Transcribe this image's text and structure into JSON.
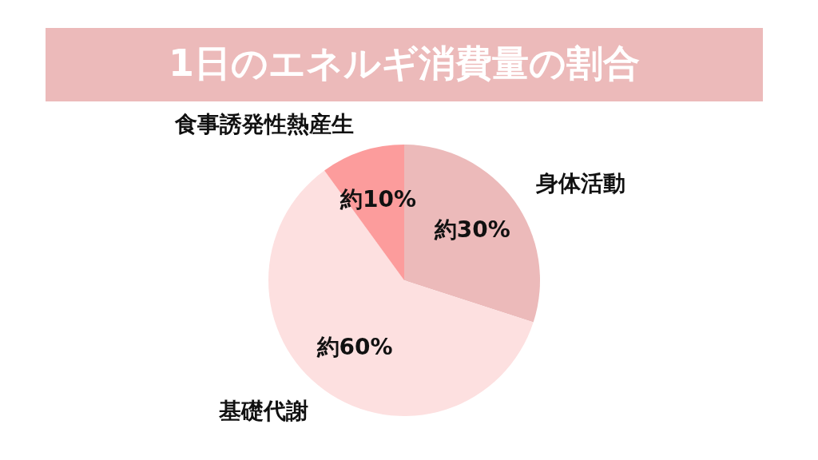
{
  "chart_data": {
    "type": "pie",
    "title": "1日のエネルギ消費量の割合",
    "categories": [
      "身体活動",
      "基礎代謝",
      "食事誘発性熱産生"
    ],
    "values": [
      30,
      60,
      10
    ],
    "colors": [
      "#ecbaba",
      "#fde0e0",
      "#fc9c9c"
    ],
    "value_labels": [
      "約30%",
      "約60%",
      "約10%"
    ]
  }
}
